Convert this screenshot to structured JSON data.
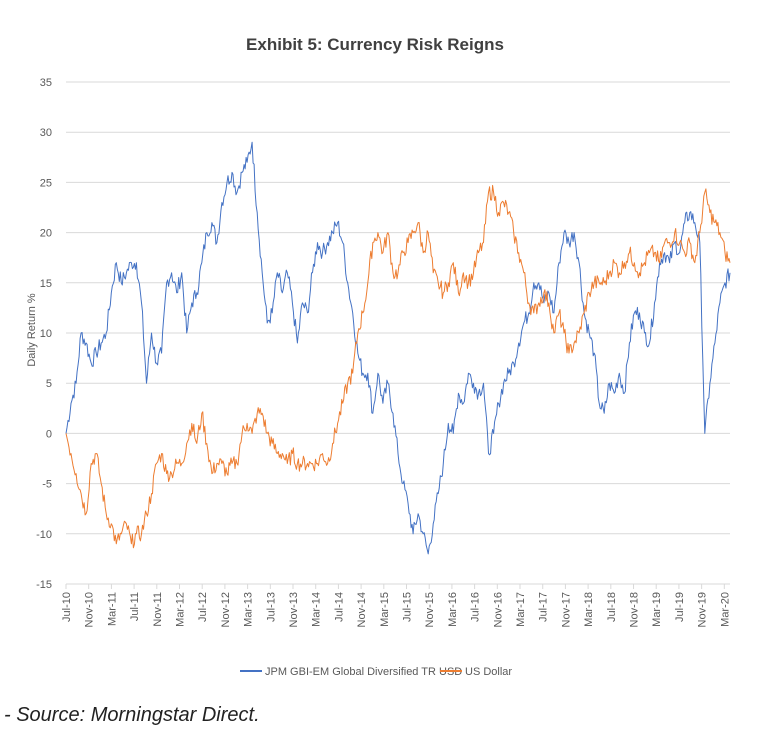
{
  "chart_data": {
    "type": "line",
    "title": "Exhibit 5: Currency Risk Reigns",
    "xlabel": "",
    "ylabel": "Daily Return %",
    "ylim": [
      -15,
      35
    ],
    "yticks": [
      35,
      30,
      25,
      20,
      15,
      10,
      5,
      0,
      -5,
      -10,
      -15
    ],
    "x_tick_labels": [
      "Jul-10",
      "Nov-10",
      "Mar-11",
      "Jul-11",
      "Nov-11",
      "Mar-12",
      "Jul-12",
      "Nov-12",
      "Mar-13",
      "Jul-13",
      "Nov-13",
      "Mar-14",
      "Jul-14",
      "Nov-14",
      "Mar-15",
      "Jul-15",
      "Nov-15",
      "Mar-16",
      "Jul-16",
      "Nov-16",
      "Mar-17",
      "Jul-17",
      "Nov-17",
      "Mar-18",
      "Jul-18",
      "Nov-18",
      "Mar-19",
      "Jul-19",
      "Nov-19",
      "Mar-20"
    ],
    "x_range_months_from_jul10": [
      0,
      117
    ],
    "grid": true,
    "legend_position": "bottom",
    "series": [
      {
        "name": "JPM GBI-EM Global Diversified TR USD",
        "color": "#4472C4",
        "values": [
          0,
          3,
          5,
          10,
          9,
          7,
          8,
          9,
          10,
          14,
          17,
          15,
          16,
          17,
          17,
          13,
          5,
          10,
          7,
          8,
          15,
          16,
          14,
          16,
          10,
          13,
          14,
          17,
          20,
          21,
          19,
          23,
          25,
          26,
          24,
          26,
          27,
          29,
          22,
          16,
          11,
          12,
          16,
          14,
          16,
          13,
          9,
          13,
          12,
          16,
          19,
          18,
          19,
          20,
          21,
          19,
          15,
          12,
          8,
          6,
          6,
          2,
          6,
          3,
          5,
          2,
          -2,
          -5,
          -7,
          -10,
          -8,
          -10,
          -12,
          -9,
          -6,
          -3,
          1,
          0,
          4,
          3,
          6,
          5,
          4,
          5,
          -2,
          0,
          3,
          5,
          6,
          7,
          9,
          11,
          12,
          15,
          15,
          13,
          14,
          12,
          17,
          20,
          19,
          20,
          17,
          12,
          10,
          8,
          3,
          2,
          5,
          4,
          6,
          4,
          9,
          12,
          12,
          10,
          9,
          13,
          17,
          18,
          17,
          19,
          18,
          21,
          22,
          21,
          19,
          0,
          5,
          9,
          13,
          15,
          16
        ]
      },
      {
        "name": "US Dollar",
        "color": "#ED7D31",
        "values": [
          0,
          -2,
          -4,
          -6,
          -8,
          -3,
          -2,
          -5,
          -8,
          -9,
          -11,
          -10,
          -9,
          -11,
          -10,
          -10,
          -8,
          -6,
          -3,
          -2,
          -4,
          -4,
          -3,
          -3,
          -1,
          1,
          -1,
          2,
          -1,
          -4,
          -3,
          -3,
          -4,
          -3,
          -3,
          0,
          1,
          0,
          2,
          2,
          0,
          -1,
          -2,
          -2,
          -3,
          -2,
          -3,
          -3,
          -3,
          -3,
          -3,
          -2,
          -3,
          -1,
          1,
          3,
          5,
          6,
          10,
          12,
          15,
          19,
          20,
          18,
          20,
          16,
          16,
          18,
          19,
          20,
          21,
          18,
          20,
          16,
          15,
          14,
          15,
          17,
          14,
          16,
          15,
          16,
          18,
          19,
          24,
          24,
          22,
          23,
          22,
          20,
          18,
          16,
          13,
          12,
          13,
          14,
          13,
          10,
          12,
          10,
          8,
          9,
          10,
          12,
          14,
          15,
          15,
          15,
          16,
          17,
          16,
          17,
          18,
          17,
          16,
          17,
          18,
          18,
          17,
          19,
          19,
          20,
          19,
          18,
          19,
          17,
          20,
          24,
          22,
          21,
          20,
          18,
          17
        ]
      }
    ]
  },
  "source": "- Source: Morningstar Direct."
}
